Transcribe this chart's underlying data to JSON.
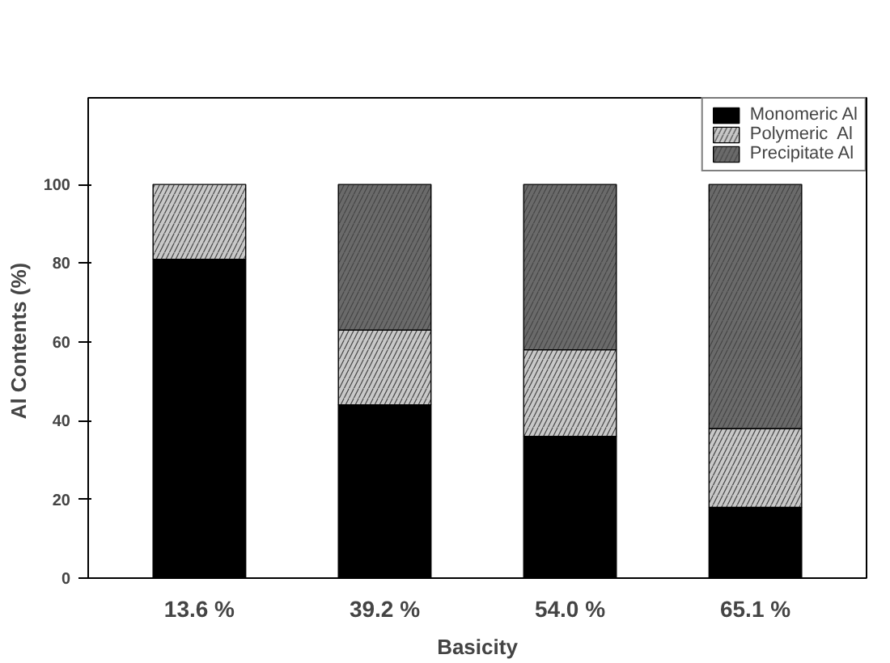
{
  "chart_data": {
    "type": "bar",
    "stacked": true,
    "xlabel": "Basicity",
    "ylabel": "Al Contents  (%)",
    "categories": [
      "13.6 %",
      "39.2 %",
      "54.0 %",
      "65.1 %"
    ],
    "series": [
      {
        "name": "Monomeric Al",
        "color": "#000000",
        "values": [
          81,
          44,
          36,
          18
        ]
      },
      {
        "name": "Polymeric  Al",
        "color": "#c8c8c8",
        "values": [
          19,
          19,
          22,
          20
        ]
      },
      {
        "name": "Precipitate Al",
        "color": "#6a6a6a",
        "values": [
          null,
          37,
          42,
          62
        ]
      }
    ],
    "ylim": [
      0,
      122
    ],
    "yticks": [
      0,
      20,
      40,
      60,
      80,
      100
    ],
    "grid": false,
    "legend": "top right"
  }
}
